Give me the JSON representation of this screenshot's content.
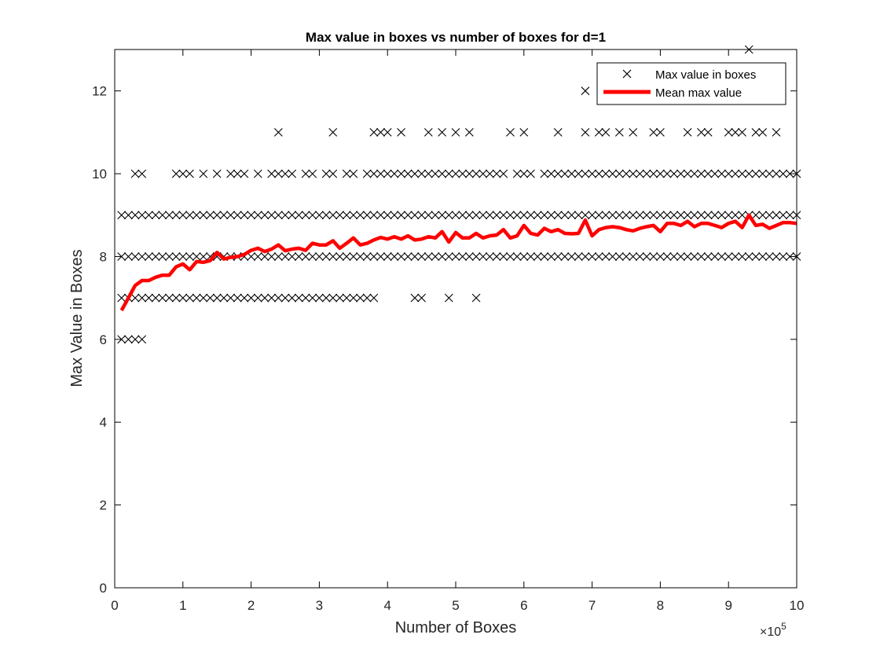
{
  "figure": {
    "title": "Max value in boxes vs number of boxes for d=1",
    "xlabel": "Number of Boxes",
    "ylabel": "Max Value in Boxes",
    "x_exponent_base": "×10",
    "x_exponent_power": "5"
  },
  "chart_data": {
    "type": "scatter",
    "title": "Max value in boxes vs number of boxes for d=1",
    "xlabel": "Number of Boxes",
    "ylabel": "Max Value in Boxes",
    "x_exponent": "×10^5",
    "xlim": [
      0,
      1000000
    ],
    "ylim": [
      0,
      13
    ],
    "x_ticks": [
      0,
      100000,
      200000,
      300000,
      400000,
      500000,
      600000,
      700000,
      800000,
      900000,
      1000000
    ],
    "x_tick_labels": [
      "0",
      "1",
      "2",
      "3",
      "4",
      "5",
      "6",
      "7",
      "8",
      "9",
      "10"
    ],
    "y_ticks": [
      0,
      2,
      4,
      6,
      8,
      10,
      12
    ],
    "y_tick_labels": [
      "0",
      "2",
      "4",
      "6",
      "8",
      "10",
      "12"
    ],
    "grid": false,
    "legend_position": "top-right",
    "x_step": 10000,
    "series": [
      {
        "name": "Max value in boxes",
        "type": "scatter",
        "marker": "x",
        "color": "#000000",
        "levels": [
          {
            "y": 6,
            "x_ranges_10k": [
              [
                1,
                4
              ]
            ]
          },
          {
            "y": 7,
            "x_ranges_10k": [
              [
                1,
                38
              ],
              [
                44,
                45
              ],
              [
                49,
                49
              ],
              [
                53,
                53
              ]
            ]
          },
          {
            "y": 8,
            "x_ranges_10k": [
              [
                1,
                100
              ]
            ]
          },
          {
            "y": 9,
            "x_ranges_10k": [
              [
                1,
                100
              ]
            ]
          },
          {
            "y": 10,
            "x_ranges_10k": [
              [
                3,
                4
              ],
              [
                9,
                11
              ],
              [
                13,
                13
              ],
              [
                15,
                15
              ],
              [
                17,
                19
              ],
              [
                21,
                21
              ],
              [
                23,
                26
              ],
              [
                28,
                29
              ],
              [
                31,
                32
              ],
              [
                34,
                35
              ],
              [
                37,
                57
              ],
              [
                59,
                61
              ],
              [
                63,
                100
              ]
            ]
          },
          {
            "y": 11,
            "x_ranges_10k": [
              [
                24,
                24
              ],
              [
                32,
                32
              ],
              [
                38,
                40
              ],
              [
                42,
                42
              ],
              [
                46,
                46
              ],
              [
                48,
                48
              ],
              [
                50,
                50
              ],
              [
                52,
                52
              ],
              [
                58,
                58
              ],
              [
                60,
                60
              ],
              [
                65,
                65
              ],
              [
                69,
                69
              ],
              [
                71,
                72
              ],
              [
                74,
                74
              ],
              [
                76,
                76
              ],
              [
                79,
                80
              ],
              [
                84,
                84
              ],
              [
                86,
                87
              ],
              [
                90,
                92
              ],
              [
                94,
                95
              ],
              [
                97,
                97
              ]
            ]
          },
          {
            "y": 12,
            "x_ranges_10k": [
              [
                69,
                69
              ]
            ]
          },
          {
            "y": 13,
            "x_ranges_10k": [
              [
                93,
                93
              ]
            ]
          }
        ]
      },
      {
        "name": "Mean max value",
        "type": "line",
        "color": "#ff0000",
        "x_start": 10000,
        "x_step": 10000,
        "y": [
          6.7,
          7.0,
          7.3,
          7.42,
          7.42,
          7.5,
          7.55,
          7.55,
          7.75,
          7.82,
          7.68,
          7.88,
          7.86,
          7.9,
          8.1,
          7.94,
          7.98,
          8.0,
          8.05,
          8.15,
          8.2,
          8.12,
          8.18,
          8.28,
          8.14,
          8.18,
          8.2,
          8.15,
          8.32,
          8.28,
          8.28,
          8.38,
          8.2,
          8.32,
          8.45,
          8.28,
          8.32,
          8.4,
          8.46,
          8.42,
          8.48,
          8.42,
          8.5,
          8.4,
          8.42,
          8.48,
          8.45,
          8.6,
          8.35,
          8.58,
          8.45,
          8.45,
          8.56,
          8.45,
          8.5,
          8.52,
          8.65,
          8.45,
          8.5,
          8.75,
          8.56,
          8.52,
          8.68,
          8.6,
          8.65,
          8.56,
          8.55,
          8.56,
          8.88,
          8.5,
          8.65,
          8.7,
          8.72,
          8.7,
          8.65,
          8.62,
          8.68,
          8.72,
          8.75,
          8.6,
          8.8,
          8.8,
          8.75,
          8.85,
          8.72,
          8.8,
          8.8,
          8.75,
          8.7,
          8.8,
          8.85,
          8.7,
          9.0,
          8.75,
          8.78,
          8.68,
          8.75,
          8.82,
          8.82,
          8.8
        ]
      }
    ]
  }
}
